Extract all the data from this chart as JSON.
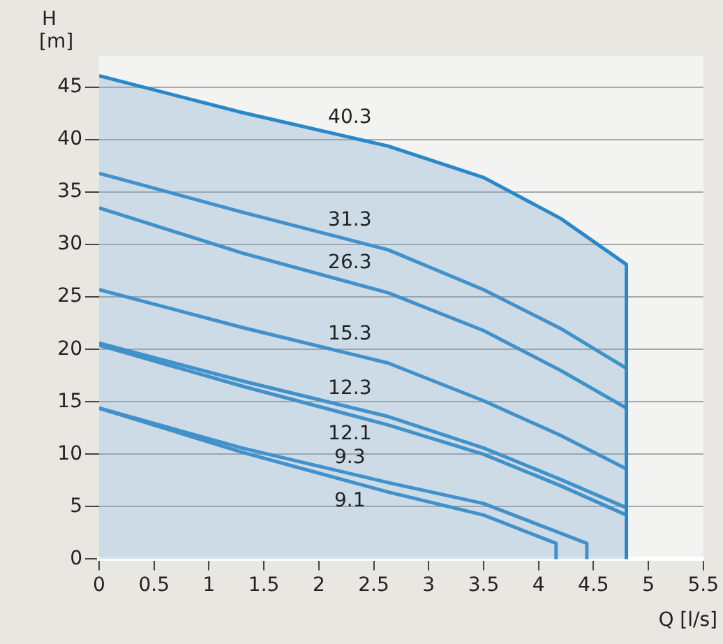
{
  "chart_data": {
    "type": "line",
    "xlabel": "Q [l/s]",
    "ylabel": "H [m]",
    "xlim": [
      0,
      5.5
    ],
    "ylim": [
      0,
      48
    ],
    "xticks": [
      0,
      0.5,
      1,
      1.5,
      2,
      2.5,
      3,
      3.5,
      4,
      4.5,
      5,
      5.5
    ],
    "yticks": [
      0,
      5,
      10,
      15,
      20,
      25,
      30,
      35,
      40,
      45
    ],
    "grid": "y",
    "legend": false,
    "marker": "none",
    "line_style": "solid",
    "series": [
      {
        "name": "40.3",
        "type": "area",
        "color": "#2a88c9",
        "x": [
          0,
          1.3,
          2.63,
          3.5,
          4.2,
          4.8,
          4.8
        ],
        "values": [
          46.1,
          42.6,
          39.4,
          36.4,
          32.5,
          28.1,
          0
        ]
      },
      {
        "name": "31.3",
        "color": "#2a88c9",
        "x": [
          0,
          1.3,
          2.63,
          3.5,
          4.2,
          4.8
        ],
        "values": [
          36.8,
          33.1,
          29.5,
          25.7,
          22,
          18.2
        ]
      },
      {
        "name": "26.3",
        "color": "#2a88c9",
        "x": [
          0,
          1.3,
          2.63,
          3.5,
          4.2,
          4.8
        ],
        "values": [
          33.5,
          29.2,
          25.4,
          21.8,
          18,
          14.4
        ]
      },
      {
        "name": "15.3",
        "color": "#2a88c9",
        "x": [
          0,
          1.3,
          2.63,
          3.5,
          4.2,
          4.8
        ],
        "values": [
          25.7,
          22.1,
          18.7,
          15.1,
          11.8,
          8.6
        ]
      },
      {
        "name": "12.3",
        "color": "#2a88c9",
        "x": [
          0,
          1.3,
          2.63,
          3.5,
          4.2,
          4.8
        ],
        "values": [
          20.6,
          17,
          13.6,
          10.6,
          7.6,
          4.9
        ]
      },
      {
        "name": "12.1",
        "color": "#2a88c9",
        "x": [
          0,
          1.3,
          2.63,
          3.5,
          4.2,
          4.8
        ],
        "values": [
          20.4,
          16.5,
          12.8,
          10,
          7,
          4.2
        ]
      },
      {
        "name": "9.3",
        "color": "#2a88c9",
        "x": [
          0,
          1.3,
          2.63,
          3.5,
          4.44,
          4.44
        ],
        "values": [
          14.4,
          10.6,
          7.3,
          5.3,
          1.5,
          0
        ]
      },
      {
        "name": "9.1",
        "color": "#2a88c9",
        "x": [
          0,
          1.3,
          2.63,
          3.5,
          4.16,
          4.16
        ],
        "values": [
          14.4,
          10.2,
          6.4,
          4.2,
          1.5,
          0
        ]
      }
    ]
  }
}
